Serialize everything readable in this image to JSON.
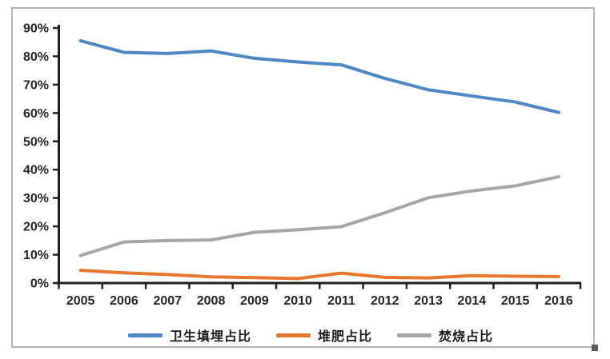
{
  "chart_data": {
    "type": "line",
    "title": "",
    "xlabel": "",
    "ylabel": "",
    "categories": [
      "2005",
      "2006",
      "2007",
      "2008",
      "2009",
      "2010",
      "2011",
      "2012",
      "2013",
      "2014",
      "2015",
      "2016"
    ],
    "series": [
      {
        "name": "卫生填埋占比",
        "color": "#4f86c6",
        "values": [
          85.5,
          81.4,
          81.0,
          81.9,
          79.3,
          78.0,
          77.0,
          72.2,
          68.2,
          66.0,
          63.9,
          60.2
        ]
      },
      {
        "name": "堆肥占比",
        "color": "#e9762d",
        "values": [
          4.5,
          3.6,
          3.0,
          2.2,
          1.9,
          1.6,
          3.5,
          2.0,
          1.8,
          2.6,
          2.4,
          2.3
        ]
      },
      {
        "name": "焚烧占比",
        "color": "#a6a6a6",
        "values": [
          9.7,
          14.5,
          15.0,
          15.2,
          17.9,
          18.8,
          19.9,
          24.8,
          30.1,
          32.5,
          34.3,
          37.5
        ]
      }
    ],
    "ylim": [
      0,
      90
    ],
    "ytick_values": [
      0,
      10,
      20,
      30,
      40,
      50,
      60,
      70,
      80,
      90
    ],
    "yticks": [
      "0%",
      "10%",
      "20%",
      "30%",
      "40%",
      "50%",
      "60%",
      "70%",
      "80%",
      "90%"
    ],
    "grid": false,
    "legend_position": "bottom",
    "axis_color": "#1f1f1f",
    "frame_color": "#b3b3b3"
  }
}
